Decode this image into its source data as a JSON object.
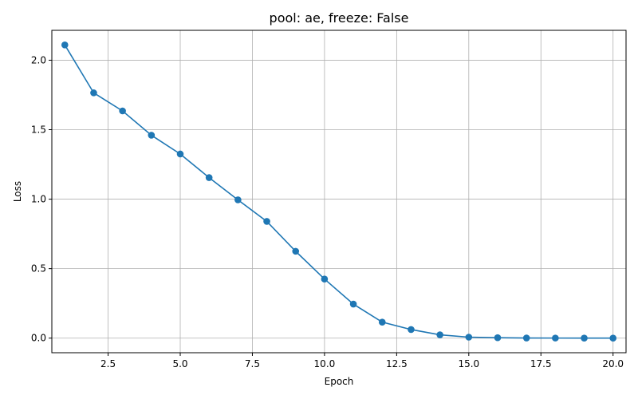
{
  "chart_data": {
    "type": "line",
    "title": "pool: ae, freeze: False",
    "xlabel": "Epoch",
    "ylabel": "Loss",
    "xlim": [
      0.55,
      20.45
    ],
    "ylim": [
      -0.105,
      2.215
    ],
    "grid": true,
    "x_ticks": [
      2.5,
      5.0,
      7.5,
      10.0,
      12.5,
      15.0,
      17.5,
      20.0
    ],
    "x_tick_labels": [
      "2.5",
      "5.0",
      "7.5",
      "10.0",
      "12.5",
      "15.0",
      "17.5",
      "20.0"
    ],
    "y_ticks": [
      0.0,
      0.5,
      1.0,
      1.5,
      2.0
    ],
    "y_tick_labels": [
      "0.0",
      "0.5",
      "1.0",
      "1.5",
      "2.0"
    ],
    "series": [
      {
        "color": "#1f77b4",
        "marker": "circle",
        "x": [
          1,
          2,
          3,
          4,
          5,
          6,
          7,
          8,
          9,
          10,
          11,
          12,
          13,
          14,
          15,
          16,
          17,
          18,
          19,
          20
        ],
        "y": [
          2.11,
          1.765,
          1.635,
          1.46,
          1.325,
          1.155,
          0.995,
          0.84,
          0.625,
          0.425,
          0.245,
          0.115,
          0.062,
          0.024,
          0.007,
          0.003,
          0.001,
          0.0005,
          0.0002,
          0.0001
        ]
      }
    ]
  }
}
